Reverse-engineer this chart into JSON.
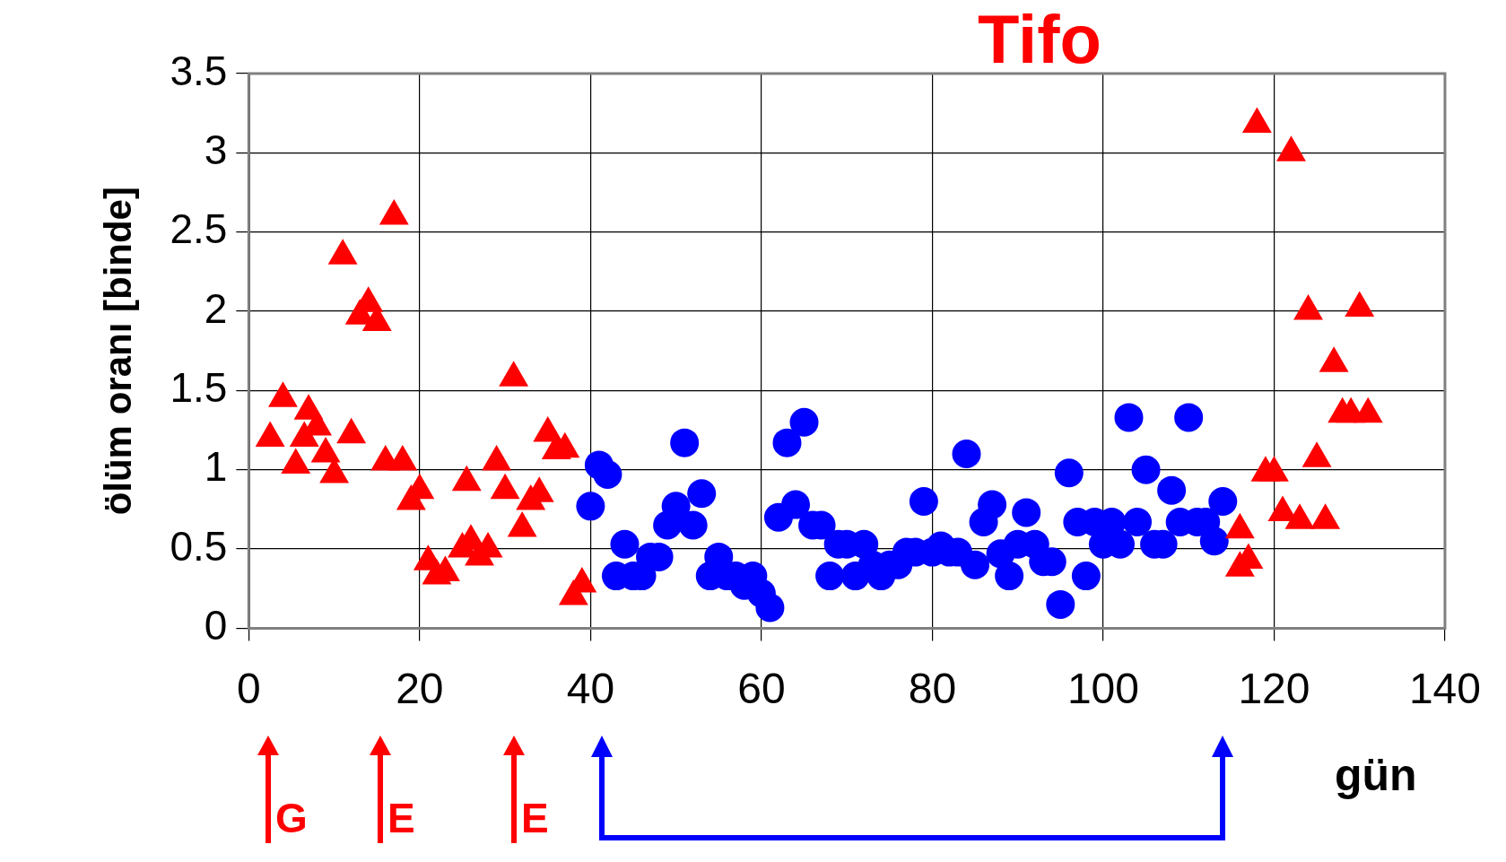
{
  "chart_data": {
    "type": "scatter",
    "title": "Tifo",
    "xlabel": "gün",
    "ylabel": "ölüm oranı [binde]",
    "xlim": [
      0,
      140
    ],
    "xticks": [
      0,
      20,
      40,
      60,
      80,
      100,
      120,
      140
    ],
    "ylim": [
      0,
      3.5
    ],
    "yticks": [
      0,
      0.5,
      1,
      1.5,
      2,
      2.5,
      3,
      3.5
    ],
    "grid": true,
    "legend": false,
    "series": [
      {
        "color": "#ff0000",
        "marker": "triangle",
        "x": [
          2.5,
          4,
          5.5,
          6.5,
          7,
          8,
          9,
          10,
          11,
          12,
          13,
          14,
          15,
          16,
          17,
          18,
          19,
          20,
          21,
          22,
          23,
          25,
          25.5,
          26,
          27,
          28,
          29,
          30,
          31,
          32,
          33,
          34,
          35,
          36,
          37,
          38,
          39,
          116,
          116,
          117,
          118,
          119,
          120,
          121,
          122,
          123,
          124,
          125,
          126,
          127,
          128,
          129,
          130,
          131
        ],
        "values": [
          1.2,
          1.45,
          1.03,
          1.2,
          1.37,
          1.27,
          1.1,
          0.97,
          2.35,
          1.22,
          1.97,
          2.05,
          1.93,
          1.05,
          2.6,
          1.05,
          0.8,
          0.87,
          0.42,
          0.33,
          0.35,
          0.5,
          0.92,
          0.55,
          0.45,
          0.5,
          1.05,
          0.87,
          1.58,
          0.63,
          0.8,
          0.85,
          1.23,
          1.12,
          1.13,
          0.2,
          0.28,
          0.62,
          0.38,
          0.43,
          3.18,
          0.98,
          0.98,
          0.73,
          3.0,
          0.68,
          2.0,
          1.07,
          0.68,
          1.67,
          1.35,
          1.35,
          2.02,
          1.35
        ]
      },
      {
        "color": "#0000ff",
        "marker": "circle",
        "x": [
          40,
          41,
          42,
          43,
          44,
          45,
          46,
          47,
          48,
          49,
          50,
          51,
          52,
          53,
          54,
          55,
          56,
          57,
          58,
          59,
          60,
          61,
          62,
          63,
          64,
          65,
          66,
          67,
          68,
          69,
          70,
          71,
          72,
          73,
          74,
          75,
          76,
          77,
          78,
          79,
          80,
          81,
          82,
          83,
          84,
          85,
          86,
          87,
          88,
          89,
          90,
          91,
          92,
          93,
          94,
          95,
          96,
          97,
          98,
          99,
          100,
          101,
          102,
          103,
          104,
          105,
          106,
          107,
          108,
          109,
          110,
          111,
          112,
          113,
          114
        ],
        "values": [
          0.77,
          1.03,
          0.97,
          0.33,
          0.53,
          0.33,
          0.33,
          0.45,
          0.45,
          0.65,
          0.77,
          1.17,
          0.65,
          0.85,
          0.33,
          0.45,
          0.33,
          0.33,
          0.27,
          0.33,
          0.22,
          0.13,
          0.7,
          1.17,
          0.78,
          1.3,
          0.65,
          0.65,
          0.33,
          0.53,
          0.53,
          0.33,
          0.53,
          0.4,
          0.33,
          0.4,
          0.4,
          0.48,
          0.48,
          0.8,
          0.48,
          0.52,
          0.48,
          0.48,
          1.1,
          0.4,
          0.67,
          0.78,
          0.47,
          0.33,
          0.53,
          0.73,
          0.53,
          0.42,
          0.42,
          0.15,
          0.98,
          0.67,
          0.33,
          0.67,
          0.53,
          0.67,
          0.53,
          1.33,
          0.67,
          1.0,
          0.53,
          0.53,
          0.87,
          0.67,
          1.33,
          0.67,
          0.67,
          0.55,
          0.8
        ]
      }
    ],
    "annotations": [
      "G",
      "E",
      "E"
    ]
  }
}
